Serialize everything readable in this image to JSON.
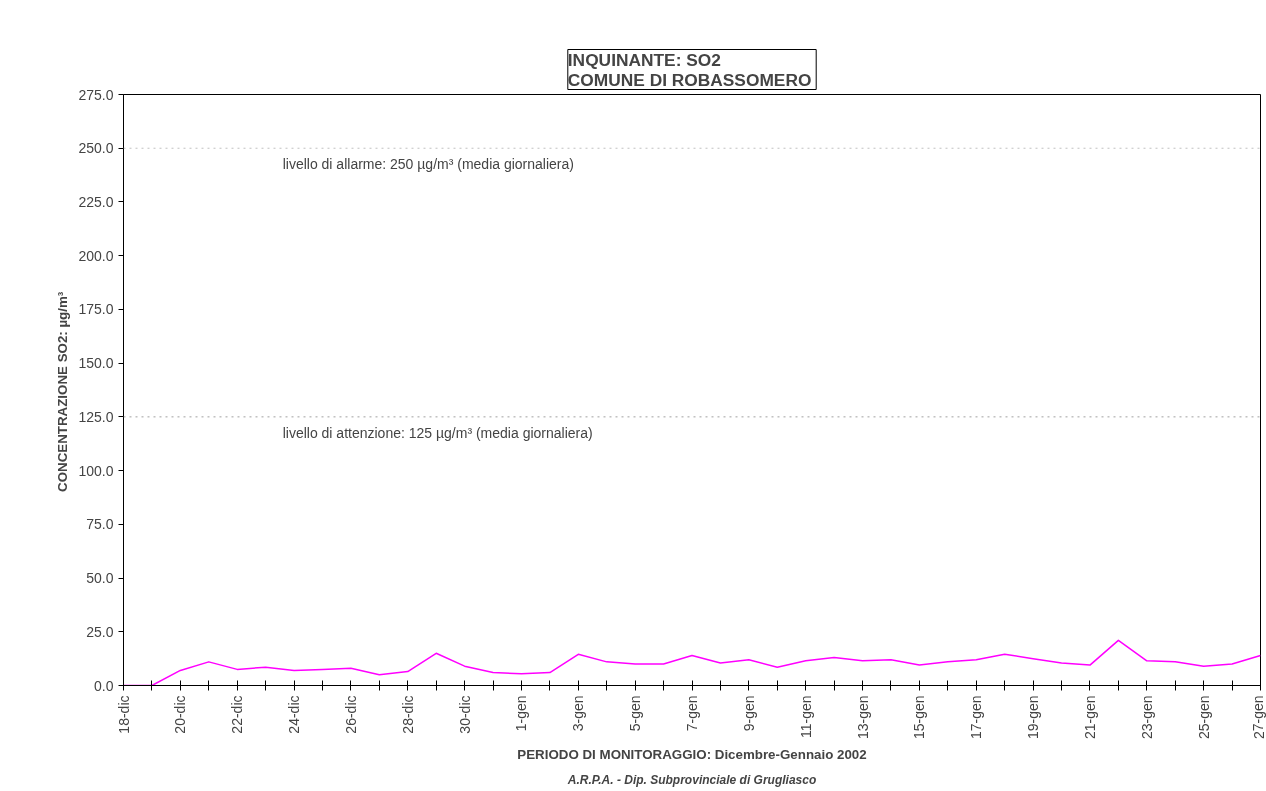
{
  "chart_data": {
    "type": "line",
    "title": "INQUINANTE: SO2\nCOMUNE DI  ROBASSOMERO",
    "xlabel": "PERIODO DI MONITORAGGIO: Dicembre-Gennaio 2002",
    "ylabel": "CONCENTRAZIONE SO2:  µg/m³",
    "categories": [
      "18-dic",
      null,
      "20-dic",
      null,
      "22-dic",
      null,
      "24-dic",
      null,
      "26-dic",
      null,
      "28-dic",
      null,
      "30-dic",
      null,
      "1-gen",
      null,
      "3-gen",
      null,
      "5-gen",
      null,
      "7-gen",
      null,
      "9-gen",
      null,
      "11-gen",
      null,
      "13-gen",
      null,
      "15-gen",
      null,
      "17-gen",
      null,
      "19-gen",
      null,
      "21-gen",
      null,
      "23-gen",
      null,
      "25-gen",
      null,
      "27-gen"
    ],
    "series": [
      {
        "color": "#ff00ff",
        "values": [
          0,
          0,
          7,
          11,
          7.5,
          8.5,
          7,
          7.5,
          8,
          5,
          6.5,
          15,
          9,
          6,
          5.5,
          6,
          14.5,
          11,
          10,
          10,
          14,
          10.5,
          12,
          8.5,
          11.5,
          13,
          11.5,
          12,
          9.5,
          11,
          12,
          14.5,
          12.5,
          10.5,
          9.5,
          21,
          11.5,
          11,
          9,
          10,
          14
        ]
      }
    ],
    "ylim": [
      0,
      275
    ],
    "yticks": [
      {
        "value": 0,
        "label": "0.0"
      },
      {
        "value": 25,
        "label": "25.0"
      },
      {
        "value": 50,
        "label": "50.0"
      },
      {
        "value": 75,
        "label": "75.0"
      },
      {
        "value": 100,
        "label": "100.0"
      },
      {
        "value": 125,
        "label": "125.0"
      },
      {
        "value": 150,
        "label": "150.0"
      },
      {
        "value": 175,
        "label": "175.0"
      },
      {
        "value": 200,
        "label": "200.0"
      },
      {
        "value": 225,
        "label": "225.0"
      },
      {
        "value": 250,
        "label": "250.0"
      },
      {
        "value": 275,
        "label": "275.0"
      }
    ],
    "ref_lines": [
      {
        "axis": "y",
        "value": 250,
        "label": "livello di allarme: 250 µg/m³ (media giornaliera)",
        "color": "#c0c0c0",
        "line_style": "dotted"
      },
      {
        "axis": "y",
        "value": 125,
        "label": "livello di attenzione: 125 µg/m³ (media giornaliera)",
        "color": "#a0a0a0",
        "line_style": "dotted"
      }
    ],
    "annotations": [
      "A.R.P.A. - Dip. Subprovinciale di Grugliasco"
    ],
    "grid": false,
    "marker": "none",
    "line_style": "solid"
  }
}
